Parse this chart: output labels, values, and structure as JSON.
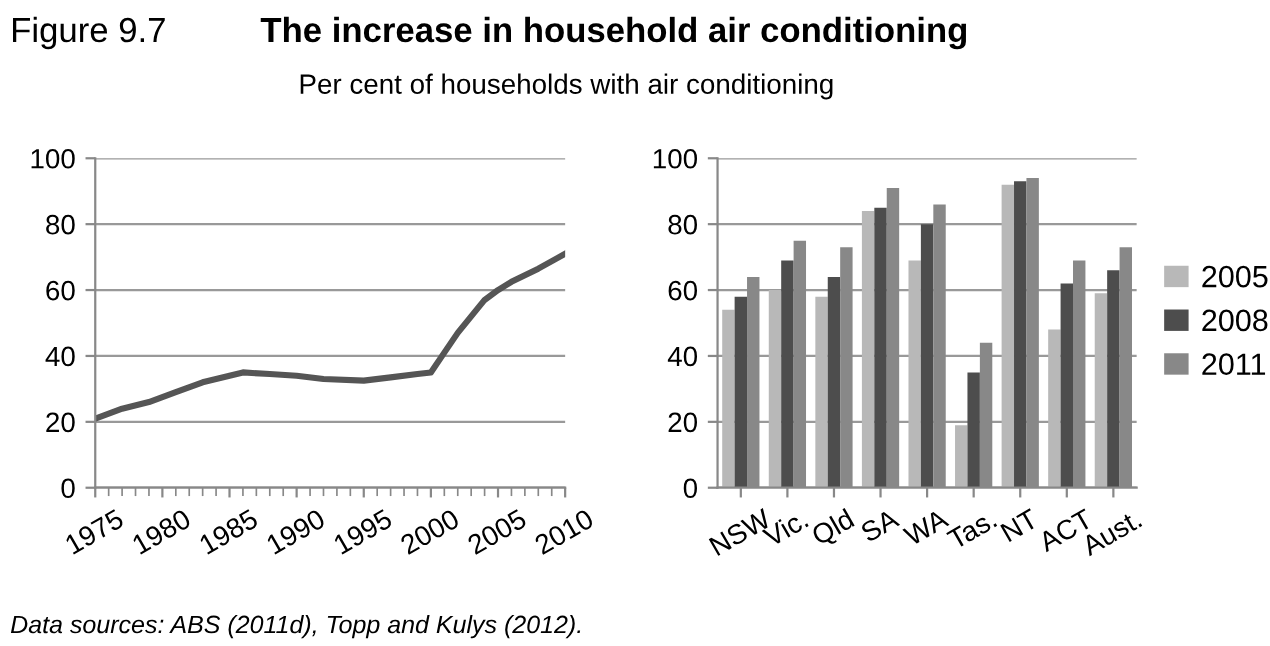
{
  "chart_data": [
    {
      "type": "line",
      "title": "The increase in household air conditioning",
      "subtitle": "Per cent of households with air conditioning",
      "annotations": [
        "Figure 9.7",
        "Data sources: ABS (2011d), Topp and Kulys (2012)."
      ],
      "x": [
        1975,
        1977,
        1979,
        1981,
        1983,
        1985,
        1986,
        1988,
        1990,
        1992,
        1995,
        1997,
        1999,
        2000,
        2001,
        2002,
        2003,
        2004,
        2005,
        2006,
        2008,
        2010
      ],
      "series": [
        {
          "color": "#555555",
          "values": [
            21,
            24,
            26,
            29,
            32,
            34,
            35,
            34.5,
            34,
            33,
            32.5,
            33.5,
            34.5,
            35,
            41,
            47,
            52,
            57,
            60,
            62.5,
            66.5,
            71
          ]
        }
      ],
      "xlim": [
        1975,
        2010
      ],
      "xticks": [
        1975,
        1980,
        1985,
        1990,
        1995,
        2000,
        2005,
        2010
      ],
      "ylim": [
        0,
        100
      ],
      "yticks": [
        0,
        20,
        40,
        60,
        80,
        100
      ],
      "grid": "y",
      "legend": false,
      "marker": "none",
      "line_style": "solid"
    },
    {
      "type": "bar",
      "categories": [
        "NSW",
        "Vic.",
        "Qld",
        "SA",
        "WA",
        "Tas.",
        "NT",
        "ACT",
        "Aust."
      ],
      "series": [
        {
          "name": "2005",
          "color": "#b8b8b8",
          "values": [
            54,
            60,
            58,
            84,
            69,
            19,
            92,
            48,
            59
          ]
        },
        {
          "name": "2008",
          "color": "#4d4d4d",
          "values": [
            58,
            69,
            64,
            85,
            80,
            35,
            93,
            62,
            66
          ]
        },
        {
          "name": "2011",
          "color": "#888888",
          "values": [
            64,
            75,
            73,
            91,
            86,
            44,
            94,
            69,
            73
          ]
        }
      ],
      "ylim": [
        0,
        100
      ],
      "yticks": [
        0,
        20,
        40,
        60,
        80,
        100
      ],
      "grid": "y",
      "legend": "right"
    }
  ]
}
